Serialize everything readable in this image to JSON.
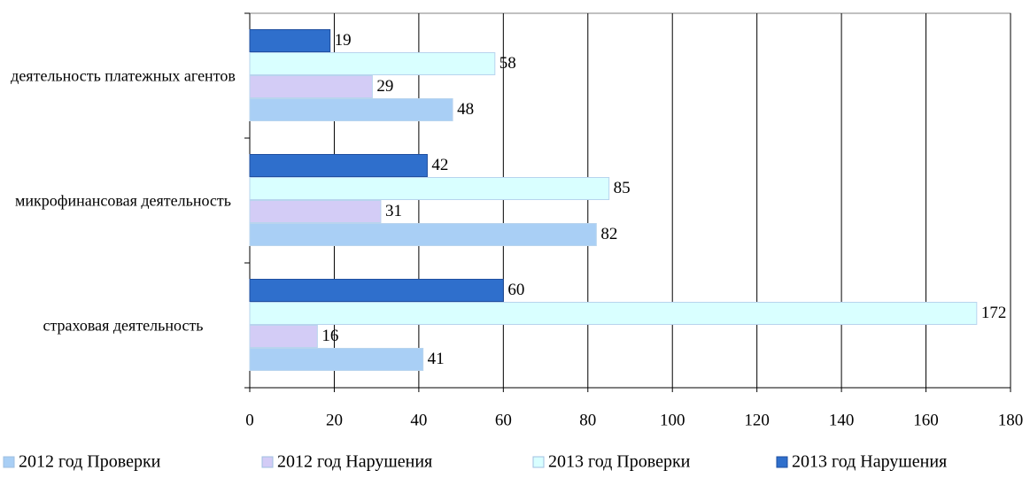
{
  "chart_data": {
    "type": "hbar",
    "categories": [
      "деятельность платежных агентов",
      "микрофинансовая деятельность",
      "страховая деятельность"
    ],
    "series": [
      {
        "name": "2012 год Проверки",
        "color": "#a9cff5",
        "values": [
          48,
          82,
          41
        ]
      },
      {
        "name": "2012 год Нарушения",
        "color": "#d3ccf6",
        "values": [
          29,
          31,
          16
        ]
      },
      {
        "name": "2013 год Проверки",
        "color": "#d9ffff",
        "values": [
          58,
          85,
          172
        ]
      },
      {
        "name": "2013 год Нарушения",
        "color": "#2f6fcc",
        "values": [
          19,
          42,
          60
        ]
      }
    ],
    "xlim": [
      0,
      180
    ],
    "xticks": [
      0,
      20,
      40,
      60,
      80,
      100,
      120,
      140,
      160,
      180
    ],
    "grid": true,
    "legend": "bottom"
  }
}
